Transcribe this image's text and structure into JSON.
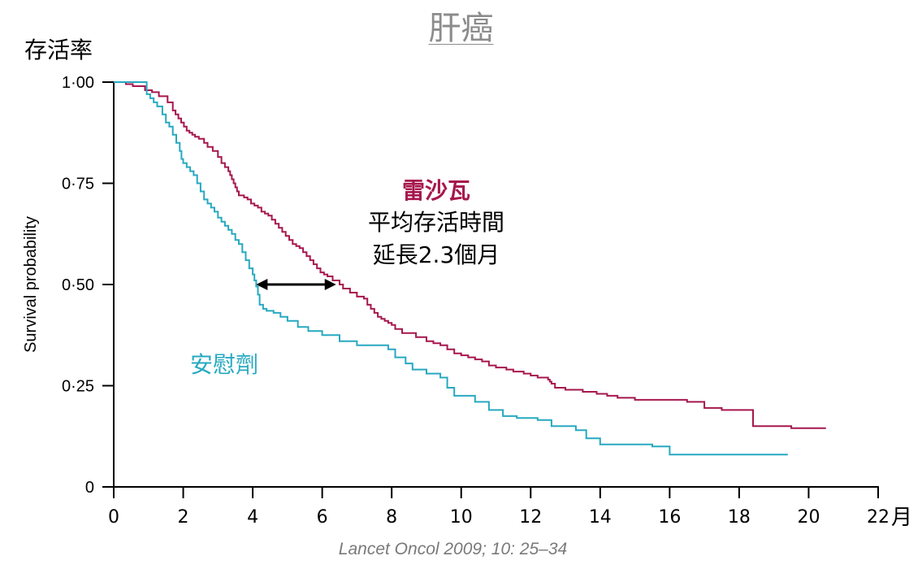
{
  "title": "肝癌",
  "citation": "Lancet Oncol 2009; 10: 25–34",
  "colors": {
    "treatment": "#a6174d",
    "placebo": "#27a9c0",
    "axis": "#000000",
    "arrow": "#000000"
  },
  "chart_data": {
    "type": "line",
    "step": true,
    "title": "肝癌",
    "ylabel_top": "存活率",
    "ylabel": "Survival probability",
    "xlabel_unit": "月",
    "xlim": [
      0,
      22
    ],
    "ylim": [
      0,
      1
    ],
    "grid": false,
    "xticks": [
      0,
      2,
      4,
      6,
      8,
      10,
      12,
      14,
      16,
      18,
      20,
      22
    ],
    "xtick_labels": [
      "0",
      "2",
      "4",
      "6",
      "8",
      "10",
      "12",
      "14",
      "16",
      "18",
      "20",
      "22"
    ],
    "yticks": [
      0,
      0.25,
      0.5,
      0.75,
      1.0
    ],
    "ytick_labels": [
      "0",
      "0·25",
      "0·50",
      "0·75",
      "1·00"
    ],
    "series": [
      {
        "name": "雷沙瓦",
        "color": "#a6174d",
        "x": [
          0,
          0.35,
          0.55,
          0.9,
          1.1,
          1.3,
          1.55,
          1.7,
          1.78,
          1.86,
          1.94,
          2.02,
          2.1,
          2.18,
          2.26,
          2.34,
          2.45,
          2.6,
          2.7,
          2.85,
          3.0,
          3.1,
          3.2,
          3.3,
          3.35,
          3.4,
          3.45,
          3.5,
          3.55,
          3.6,
          3.75,
          3.85,
          3.95,
          4.05,
          4.15,
          4.25,
          4.35,
          4.45,
          4.55,
          4.65,
          4.75,
          4.85,
          4.95,
          5.05,
          5.15,
          5.25,
          5.35,
          5.45,
          5.55,
          5.65,
          5.75,
          5.85,
          5.95,
          6.05,
          6.15,
          6.3,
          6.5,
          6.6,
          6.8,
          7.0,
          7.2,
          7.3,
          7.4,
          7.5,
          7.6,
          7.7,
          7.8,
          7.9,
          8.0,
          8.1,
          8.3,
          8.7,
          9.0,
          9.2,
          9.4,
          9.6,
          9.8,
          10.0,
          10.2,
          10.4,
          10.6,
          10.8,
          11.0,
          11.3,
          11.5,
          11.8,
          12.0,
          12.2,
          12.5,
          12.55,
          12.6,
          12.7,
          13.0,
          13.5,
          13.9,
          14.2,
          14.5,
          15.0,
          16.0,
          16.5,
          17.0,
          17.5,
          18.0,
          18.4,
          19.0,
          19.5,
          20.0,
          20.5
        ],
        "y": [
          1.0,
          0.995,
          0.99,
          0.98,
          0.975,
          0.965,
          0.95,
          0.93,
          0.92,
          0.91,
          0.9,
          0.89,
          0.88,
          0.875,
          0.87,
          0.865,
          0.86,
          0.85,
          0.84,
          0.83,
          0.815,
          0.8,
          0.79,
          0.78,
          0.77,
          0.76,
          0.75,
          0.74,
          0.73,
          0.72,
          0.715,
          0.71,
          0.7,
          0.695,
          0.69,
          0.68,
          0.675,
          0.67,
          0.66,
          0.65,
          0.64,
          0.63,
          0.62,
          0.61,
          0.6,
          0.595,
          0.59,
          0.58,
          0.57,
          0.56,
          0.55,
          0.54,
          0.53,
          0.525,
          0.52,
          0.51,
          0.5,
          0.49,
          0.48,
          0.47,
          0.465,
          0.45,
          0.44,
          0.43,
          0.42,
          0.415,
          0.41,
          0.405,
          0.4,
          0.39,
          0.38,
          0.37,
          0.36,
          0.355,
          0.35,
          0.34,
          0.33,
          0.325,
          0.32,
          0.315,
          0.31,
          0.3,
          0.295,
          0.29,
          0.285,
          0.28,
          0.275,
          0.27,
          0.265,
          0.26,
          0.255,
          0.245,
          0.24,
          0.235,
          0.23,
          0.225,
          0.22,
          0.215,
          0.215,
          0.21,
          0.195,
          0.19,
          0.19,
          0.15,
          0.15,
          0.145,
          0.145,
          0.145
        ]
      },
      {
        "name": "安慰劑",
        "color": "#27a9c0",
        "x": [
          0,
          0.4,
          0.8,
          0.95,
          1.05,
          1.15,
          1.25,
          1.4,
          1.5,
          1.6,
          1.7,
          1.8,
          1.9,
          1.95,
          2.0,
          2.1,
          2.2,
          2.3,
          2.4,
          2.5,
          2.6,
          2.7,
          2.8,
          2.9,
          3.0,
          3.1,
          3.2,
          3.3,
          3.4,
          3.5,
          3.6,
          3.7,
          3.8,
          3.9,
          4.0,
          4.05,
          4.1,
          4.15,
          4.2,
          4.3,
          4.4,
          4.6,
          4.8,
          5.0,
          5.3,
          5.6,
          6.0,
          6.5,
          7.0,
          7.5,
          7.9,
          8.1,
          8.4,
          8.6,
          9.0,
          9.4,
          9.6,
          9.8,
          10.4,
          10.8,
          11.2,
          11.6,
          12.2,
          12.6,
          13.3,
          13.6,
          14.0,
          14.8,
          15.5,
          16.0,
          17.0,
          18.0,
          19.4
        ],
        "y": [
          1.0,
          1.0,
          1.0,
          0.97,
          0.96,
          0.95,
          0.94,
          0.92,
          0.9,
          0.89,
          0.87,
          0.85,
          0.83,
          0.81,
          0.8,
          0.79,
          0.78,
          0.77,
          0.75,
          0.73,
          0.71,
          0.7,
          0.69,
          0.68,
          0.665,
          0.655,
          0.645,
          0.635,
          0.625,
          0.61,
          0.6,
          0.58,
          0.56,
          0.54,
          0.525,
          0.51,
          0.495,
          0.475,
          0.45,
          0.44,
          0.435,
          0.43,
          0.42,
          0.41,
          0.395,
          0.385,
          0.375,
          0.36,
          0.35,
          0.35,
          0.34,
          0.32,
          0.305,
          0.29,
          0.28,
          0.27,
          0.245,
          0.225,
          0.21,
          0.19,
          0.175,
          0.17,
          0.165,
          0.15,
          0.14,
          0.12,
          0.105,
          0.105,
          0.1,
          0.08,
          0.08,
          0.08,
          0.08
        ]
      }
    ],
    "annotations": [
      {
        "text": "雷沙瓦",
        "color": "#a6174d",
        "bold": true
      },
      {
        "text": "平均存活時間",
        "color": "#000000"
      },
      {
        "text": "延長2.3個月",
        "color": "#000000"
      },
      {
        "text": "安慰劑",
        "color": "#27a9c0"
      }
    ],
    "median_arrow": {
      "y": 0.5,
      "x_from": 4.1,
      "x_to": 6.4
    }
  }
}
